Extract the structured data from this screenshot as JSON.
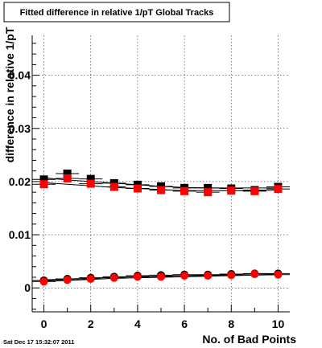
{
  "title": "Fitted difference in relative 1/pT  Global Tracks",
  "timestamp": "Sat Dec 17 15:32:07 2011",
  "chart_data": {
    "type": "scatter",
    "title": "Fitted difference in relative 1/pT  Global Tracks",
    "xlabel": "No. of Bad Points",
    "ylabel": "difference in relative 1/pT",
    "xlim": [
      -0.5,
      10.5
    ],
    "ylim": [
      -0.0045,
      0.0475
    ],
    "xticks": [
      0,
      2,
      4,
      6,
      8,
      10
    ],
    "yticks": [
      0,
      0.01,
      0.02,
      0.03,
      0.04
    ],
    "ytick_labels": [
      "0",
      "0.01",
      "0.02",
      "0.03",
      "0.04"
    ],
    "grid": true,
    "series": [
      {
        "marker": "square",
        "color": "#000000",
        "x": [
          0,
          1,
          2,
          3,
          4,
          5,
          6,
          7,
          8,
          9,
          10
        ],
        "y": [
          0.0204,
          0.0215,
          0.0205,
          0.0197,
          0.0194,
          0.0191,
          0.0188,
          0.0188,
          0.0187,
          0.0184,
          0.019
        ],
        "fit": [
          0.0207,
          0.0203,
          0.02,
          0.0197,
          0.0194,
          0.0191,
          0.0189,
          0.0188,
          0.0188,
          0.0188,
          0.0188
        ]
      },
      {
        "marker": "square",
        "color": "#ff0000",
        "x": [
          0,
          1,
          2,
          3,
          4,
          5,
          6,
          7,
          8,
          9,
          10
        ],
        "y": [
          0.0195,
          0.0206,
          0.0196,
          0.019,
          0.0187,
          0.0184,
          0.0182,
          0.018,
          0.0183,
          0.0182,
          0.0186
        ],
        "fit": [
          0.0198,
          0.0195,
          0.0192,
          0.0189,
          0.0187,
          0.0185,
          0.0183,
          0.0183,
          0.0183,
          0.0183,
          0.0184
        ]
      },
      {
        "marker": "circle",
        "color": "#000000",
        "x": [
          0,
          1,
          2,
          3,
          4,
          5,
          6,
          7,
          8,
          9,
          10
        ],
        "y": [
          0.0014,
          0.0017,
          0.0019,
          0.0021,
          0.0023,
          0.0024,
          0.0025,
          0.0025,
          0.0026,
          0.0027,
          0.0027
        ],
        "fit": [
          0.0015,
          0.0017,
          0.0018,
          0.002,
          0.0021,
          0.0022,
          0.0023,
          0.0024,
          0.0025,
          0.0026,
          0.0026
        ]
      },
      {
        "marker": "circle",
        "color": "#ff0000",
        "x": [
          0,
          1,
          2,
          3,
          4,
          5,
          6,
          7,
          8,
          9,
          10
        ],
        "y": [
          0.0012,
          0.0015,
          0.0017,
          0.0019,
          0.0021,
          0.0021,
          0.0023,
          0.0023,
          0.0024,
          0.0026,
          0.0025
        ],
        "fit": [
          0.0012,
          0.0014,
          0.0016,
          0.0018,
          0.0019,
          0.002,
          0.0021,
          0.0022,
          0.0023,
          0.0024,
          0.0025
        ]
      }
    ]
  }
}
